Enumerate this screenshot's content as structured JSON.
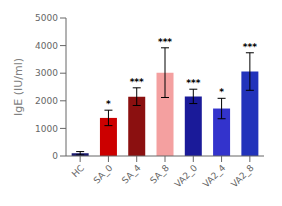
{
  "chart_data": {
    "type": "bar",
    "ylabel": "IgE (IU/ml)",
    "categories": [
      "HC",
      "SA_0",
      "SA_4",
      "SA_8",
      "VA2_0",
      "VA2_4",
      "VA2_8"
    ],
    "values": [
      100,
      1380,
      2150,
      3020,
      2160,
      1720,
      3060
    ],
    "errors": [
      60,
      280,
      320,
      900,
      260,
      370,
      680
    ],
    "colors": [
      "#1a1a6e",
      "#cc0000",
      "#8b1010",
      "#f4a0a0",
      "#1a1a99",
      "#3333cc",
      "#2233bb"
    ],
    "annotations": [
      {
        "category": "SA_0",
        "text": "*"
      },
      {
        "category": "SA_4",
        "text": "***"
      },
      {
        "category": "SA_8",
        "text": "***"
      },
      {
        "category": "VA2_0",
        "text": "***"
      },
      {
        "category": "VA2_4",
        "text": "*"
      },
      {
        "category": "VA2_8",
        "text": "***"
      }
    ],
    "ylim": [
      0,
      5000
    ],
    "yticks": [
      0,
      1000,
      2000,
      3000,
      4000,
      5000
    ]
  }
}
